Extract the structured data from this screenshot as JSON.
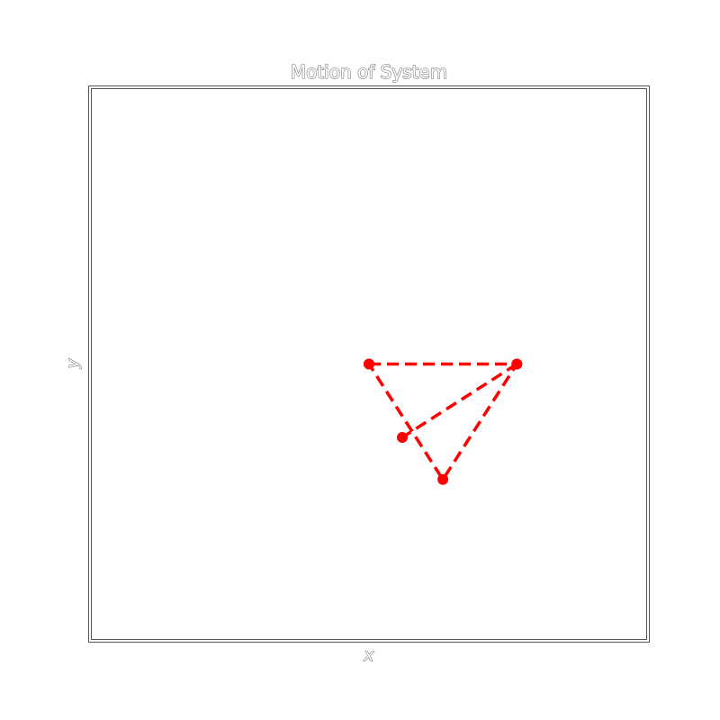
{
  "chart_data": {
    "type": "line",
    "title": "Motion of System",
    "xlabel": "x",
    "ylabel": "y",
    "xlim": [
      -1.5,
      1.5
    ],
    "ylim": [
      -1.5,
      1.5
    ],
    "grid": false,
    "ticks_shown": false,
    "series": [
      {
        "color": "#ff0000",
        "line_style": "dashed",
        "marker": "circle",
        "points": [
          {
            "x": 0.0,
            "y": 0.0
          },
          {
            "x": 0.8,
            "y": 0.0
          },
          {
            "x": 0.4,
            "y": -0.63
          },
          {
            "x": 0.0,
            "y": 0.0
          }
        ]
      },
      {
        "color": "#ff0000",
        "line_style": "dashed",
        "marker": "circle",
        "points": [
          {
            "x": 0.8,
            "y": 0.0
          },
          {
            "x": 0.18,
            "y": -0.4
          }
        ]
      }
    ]
  }
}
